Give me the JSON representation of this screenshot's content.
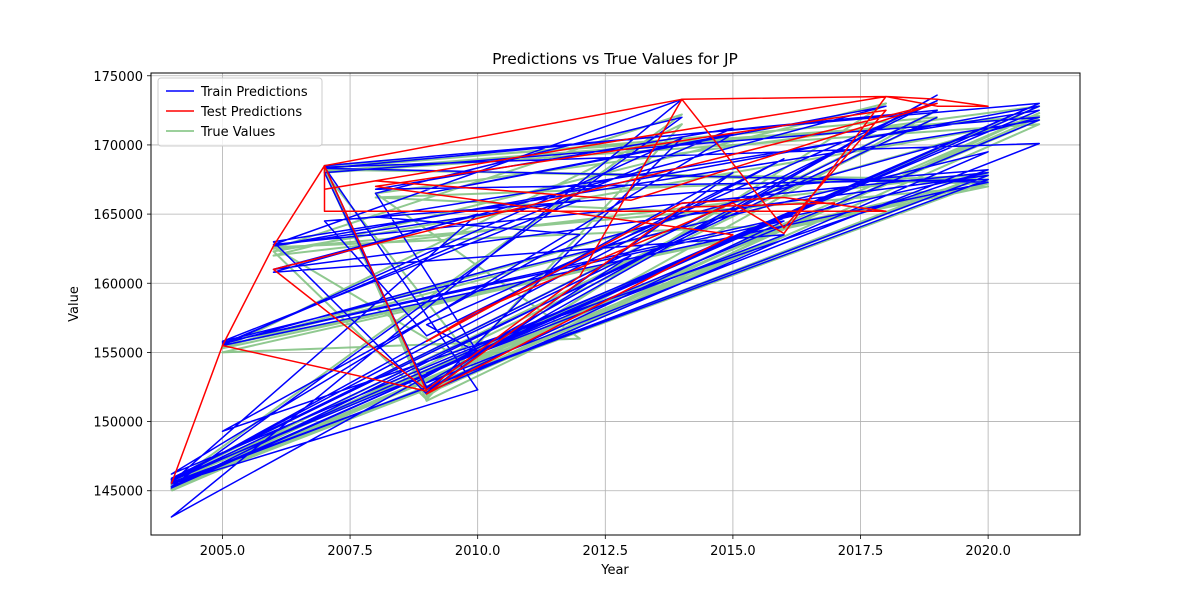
{
  "chart_data": {
    "type": "line",
    "title": "Predictions vs True Values for JP",
    "xlabel": "Year",
    "ylabel": "Value",
    "xlim": [
      2003.6,
      2021.8
    ],
    "ylim": [
      141800,
      175200
    ],
    "xticks": [
      2005.0,
      2007.5,
      2010.0,
      2012.5,
      2015.0,
      2017.5,
      2020.0
    ],
    "xtick_labels": [
      "2005.0",
      "2007.5",
      "2010.0",
      "2012.5",
      "2015.0",
      "2017.5",
      "2020.0"
    ],
    "yticks": [
      145000,
      150000,
      155000,
      160000,
      165000,
      170000,
      175000
    ],
    "ytick_labels": [
      "145000",
      "150000",
      "155000",
      "160000",
      "165000",
      "170000",
      "175000"
    ],
    "grid": true,
    "legend_position": "upper-left",
    "series": [
      {
        "name": "True Values",
        "color": "#7cc07c",
        "x": [
          2004,
          2021,
          2007,
          2009,
          2016,
          2005,
          2020,
          2006,
          2014,
          2004,
          2019,
          2009,
          2021,
          2007,
          2010,
          2004,
          2020,
          2006,
          2018,
          2009,
          2015,
          2004,
          2021,
          2008,
          2012,
          2005,
          2020,
          2007,
          2009,
          2016,
          2004,
          2021,
          2006,
          2009,
          2014,
          2005,
          2020,
          2007,
          2019,
          2004,
          2021,
          2009,
          2016,
          2006,
          2010,
          2004,
          2020,
          2008,
          2015,
          2005,
          2021,
          2007,
          2009,
          2013,
          2004,
          2020
        ],
        "y": [
          145000,
          172000,
          168500,
          151500,
          164000,
          155500,
          167000,
          162500,
          172200,
          145500,
          172500,
          152000,
          171500,
          168000,
          154000,
          145200,
          168000,
          162000,
          173000,
          151800,
          166000,
          145800,
          172800,
          166500,
          156000,
          155000,
          167500,
          168200,
          152200,
          163500,
          145300,
          171800,
          162300,
          151600,
          171500,
          155300,
          167200,
          168300,
          172000,
          145100,
          172300,
          152100,
          164200,
          162600,
          153800,
          145400,
          167800,
          166200,
          165000,
          155400,
          172100,
          168100,
          151900,
          160000,
          145600,
          167400
        ]
      },
      {
        "name": "Train Predictions",
        "color": "#0000ff",
        "x": [
          2004,
          2021,
          2007,
          2009,
          2016,
          2005,
          2020,
          2006,
          2014,
          2004,
          2019,
          2009,
          2021,
          2007,
          2010,
          2004,
          2020,
          2006,
          2018,
          2009,
          2015,
          2004,
          2021,
          2008,
          2012,
          2005,
          2020,
          2007,
          2009,
          2016,
          2004,
          2021,
          2006,
          2009,
          2014,
          2005,
          2020,
          2007,
          2019,
          2004,
          2021,
          2009,
          2016,
          2006,
          2010,
          2004,
          2020,
          2008,
          2015,
          2005,
          2021,
          2007,
          2009,
          2013,
          2004,
          2019,
          2009,
          2010,
          2008,
          2014,
          2004,
          2021,
          2006,
          2012,
          2005,
          2020,
          2009,
          2015,
          2004,
          2019
        ],
        "y": [
          145700,
          173000,
          168500,
          152300,
          164500,
          155700,
          168000,
          162800,
          173300,
          143100,
          173600,
          152800,
          170100,
          168400,
          152300,
          145500,
          167800,
          161000,
          172800,
          166500,
          170800,
          146200,
          172500,
          164800,
          163500,
          149300,
          168200,
          164500,
          156200,
          169000,
          145800,
          171800,
          163000,
          152000,
          170500,
          155500,
          167300,
          168300,
          172500,
          145200,
          173000,
          153500,
          163500,
          160800,
          165000,
          145600,
          167500,
          166800,
          171200,
          155600,
          172000,
          168000,
          152500,
          162000,
          145900,
          173200,
          157000,
          155000,
          166500,
          172000,
          145300,
          172800,
          162700,
          166000,
          155800,
          169500,
          152100,
          168000,
          145700,
          172000
        ]
      },
      {
        "name": "Test Predictions",
        "color": "#ff0000",
        "x": [
          2004,
          2005,
          2006,
          2007,
          2014,
          2018,
          2019,
          2020,
          2019,
          2018,
          2014,
          2007,
          2006,
          2005,
          2009,
          2007,
          2007,
          2018,
          2016,
          2014,
          2009,
          2010,
          2015,
          2016,
          2018,
          2007,
          2008,
          2013,
          2019,
          2006,
          2009,
          2012,
          2014,
          2016,
          2018,
          2008,
          2015,
          2009,
          2014,
          2017
        ],
        "y": [
          145500,
          155500,
          162700,
          168500,
          173300,
          173500,
          172800,
          172800,
          173300,
          173500,
          173300,
          168500,
          162700,
          155500,
          152200,
          168500,
          165200,
          165200,
          166200,
          165800,
          155800,
          158000,
          165800,
          163600,
          173500,
          166800,
          167400,
          166000,
          173000,
          161000,
          152300,
          160500,
          173300,
          164000,
          172500,
          167000,
          163500,
          152000,
          165500,
          165800
        ]
      }
    ]
  }
}
